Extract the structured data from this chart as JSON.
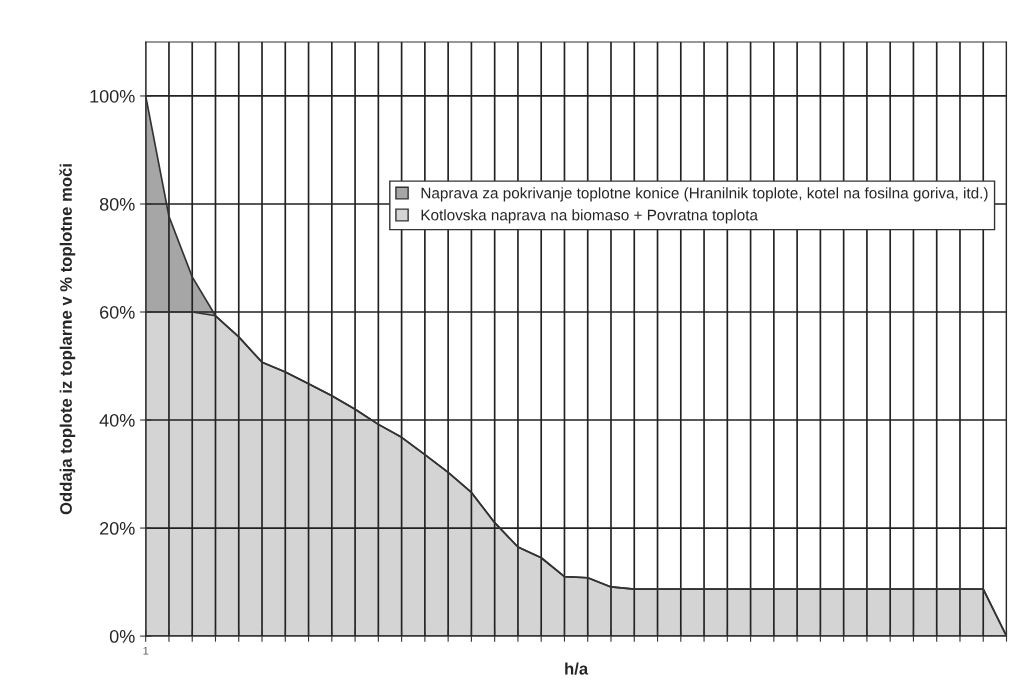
{
  "chart_data": {
    "type": "area",
    "stacked": true,
    "xlabel": "h/a",
    "ylabel": "Oddaja toplote iz toplarne v % toplotne moči",
    "categories": [
      "1",
      null,
      null,
      null,
      null,
      null,
      null,
      null,
      null,
      null,
      null,
      null,
      null,
      null,
      null,
      null,
      null,
      null,
      null,
      null,
      null,
      null,
      null,
      null,
      null,
      null,
      null,
      null,
      null,
      null,
      null,
      null,
      null,
      null,
      null,
      null,
      null,
      null
    ],
    "series": [
      {
        "name": "Kotlovska naprava na biomaso + Povratna toplota",
        "color": "#d4d4d4",
        "values": [
          60,
          60,
          60,
          59.3,
          55.4,
          50.7,
          48.9,
          46.7,
          44.5,
          42.0,
          39.2,
          36.8,
          33.6,
          30.3,
          26.6,
          21.0,
          16.5,
          14.5,
          11.0,
          10.8,
          9.1,
          8.7,
          8.7,
          8.7,
          8.7,
          8.7,
          8.7,
          8.7,
          8.7,
          8.7,
          8.7,
          8.7,
          8.7,
          8.7,
          8.7,
          8.7,
          8.7,
          0
        ]
      },
      {
        "name": "Naprava za pokrivanje toplotne konice (Hranilnik toplote, kotel na fosilna goriva, itd.)",
        "color": "#a6a6a6",
        "values": [
          40,
          17.7,
          6.5,
          0,
          0,
          0,
          0,
          0,
          0,
          0,
          0,
          0,
          0,
          0,
          0,
          0,
          0,
          0,
          0,
          0,
          0,
          0,
          0,
          0,
          0,
          0,
          0,
          0,
          0,
          0,
          0,
          0,
          0,
          0,
          0,
          0,
          0,
          0
        ]
      }
    ],
    "ylim": [
      0,
      110
    ],
    "yticks": [
      {
        "value": 0,
        "label": "0%"
      },
      {
        "value": 20,
        "label": "20%"
      },
      {
        "value": 40,
        "label": "40%"
      },
      {
        "value": 60,
        "label": "60%"
      },
      {
        "value": 80,
        "label": "80%"
      },
      {
        "value": 100,
        "label": "100%"
      }
    ],
    "grid": true,
    "legend": "center right"
  }
}
